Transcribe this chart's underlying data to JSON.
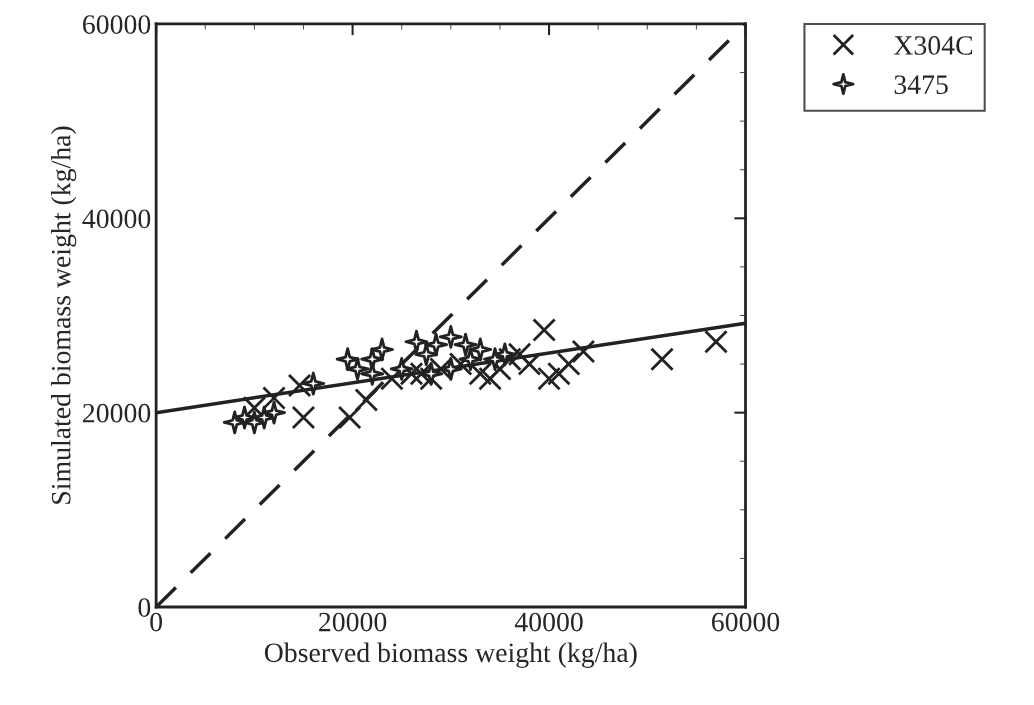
{
  "chart_data": {
    "type": "scatter",
    "xlabel": "Observed biomass weight (kg/ha)",
    "ylabel": "Simulated biomass weight (kg/ha)",
    "xlim": [
      0,
      60000
    ],
    "ylim": [
      0,
      60000
    ],
    "xticks": [
      0,
      20000,
      40000,
      60000
    ],
    "yticks": [
      0,
      20000,
      40000,
      60000
    ],
    "grid": false,
    "legend": "top right",
    "series": [
      {
        "name": "X304C",
        "color": "#222222",
        "marker": "cross",
        "x": [
          10000,
          12000,
          14600,
          15000,
          19700,
          21400,
          24000,
          26000,
          27000,
          28000,
          29000,
          31000,
          33000,
          34000,
          35000,
          36000,
          37000,
          38000,
          39500,
          40000,
          41000,
          42000,
          43500,
          51500,
          57000
        ],
        "values": [
          20500,
          21500,
          22800,
          19500,
          19500,
          21300,
          23500,
          24000,
          24000,
          23500,
          24500,
          25000,
          24000,
          23500,
          24500,
          25500,
          26000,
          25000,
          28500,
          23500,
          24000,
          25000,
          26300,
          25500,
          27300
        ]
      },
      {
        "name": "3475",
        "color": "#222222",
        "marker": "diamond",
        "x": [
          8000,
          9000,
          10000,
          11000,
          12000,
          16000,
          19500,
          20500,
          22000,
          22000,
          23000,
          25000,
          26500,
          27500,
          28000,
          28500,
          30000,
          30000,
          31500,
          32000,
          33000,
          34500,
          35500
        ],
        "values": [
          19000,
          19500,
          19000,
          19500,
          20000,
          23000,
          25500,
          24500,
          25500,
          24000,
          26500,
          24500,
          27300,
          26000,
          24000,
          27000,
          27800,
          24500,
          27000,
          25500,
          26500,
          25500,
          26000
        ]
      },
      {
        "type": "line",
        "color": "#222222",
        "line_style": "solid",
        "x": [
          0,
          60000
        ],
        "values": [
          20000,
          29200
        ]
      },
      {
        "type": "line",
        "color": "#222222",
        "line_style": "dashed",
        "x": [
          0,
          60000
        ],
        "values": [
          0,
          60000
        ]
      }
    ]
  }
}
